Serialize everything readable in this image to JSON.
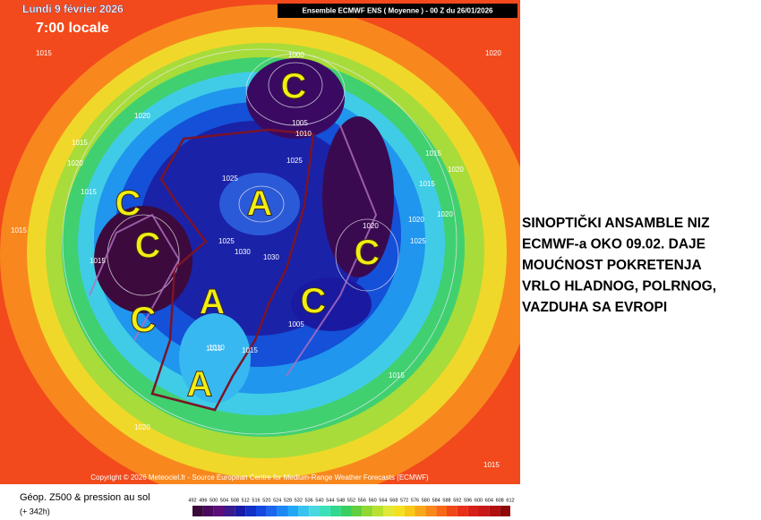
{
  "header": {
    "date": "Lundi 9 février 2026",
    "time": "7:00 locale",
    "model": "Ensemble ECMWF ENS  ( Moyenne )  - 00 Z du 26/01/2026"
  },
  "map": {
    "centers": [
      "C",
      "C",
      "C",
      "C",
      "A",
      "A",
      "A",
      "C",
      "C"
    ],
    "isobars": [
      "1015",
      "1015",
      "1020",
      "1015",
      "1015",
      "1020",
      "1015",
      "1000",
      "1005",
      "1010",
      "1025",
      "1025",
      "1030",
      "1030",
      "1025",
      "1015",
      "1020",
      "1020",
      "1015",
      "1025",
      "1020",
      "1015",
      "1020",
      "1015",
      "1010",
      "1015",
      "1020",
      "1005",
      "1015",
      "1020"
    ],
    "copyright": "Copyright © 2026 Meteociel.fr - Source European Centre for Medium-Range Weather Forecasts (ECMWF)"
  },
  "footer": {
    "field": "Géop. Z500 & pression au sol",
    "lead": "(+ 342h)"
  },
  "scale": {
    "labels": [
      492,
      496,
      500,
      504,
      508,
      512,
      516,
      520,
      524,
      528,
      532,
      536,
      540,
      544,
      548,
      552,
      556,
      560,
      564,
      568,
      572,
      576,
      580,
      584,
      588,
      592,
      596,
      600,
      604,
      608,
      612
    ],
    "colors": [
      "#3b0a3a",
      "#4a0a5e",
      "#5c0f7a",
      "#3a1a8e",
      "#1a1aa8",
      "#1030c8",
      "#1448e0",
      "#1a66ee",
      "#1c88f4",
      "#22a8f8",
      "#38c4f0",
      "#4ad8e0",
      "#3ce0b8",
      "#30d890",
      "#38d060",
      "#60d040",
      "#90d830",
      "#b8e030",
      "#e0e838",
      "#f4e020",
      "#f8c818",
      "#f8a818",
      "#f88818",
      "#f86818",
      "#f04818",
      "#e83018",
      "#d82018",
      "#c81818",
      "#b01010",
      "#900808"
    ]
  },
  "annotation": {
    "lines": [
      "SINOPTIČKI ANSAMBLE NIZ",
      "ECMWF-a OKO 09.02. DAJE",
      "MOUĆNOST POKRETENJA",
      "VRLO HLADNOG, POLRNOG,",
      "VAZDUHA SA EVROPI"
    ]
  }
}
